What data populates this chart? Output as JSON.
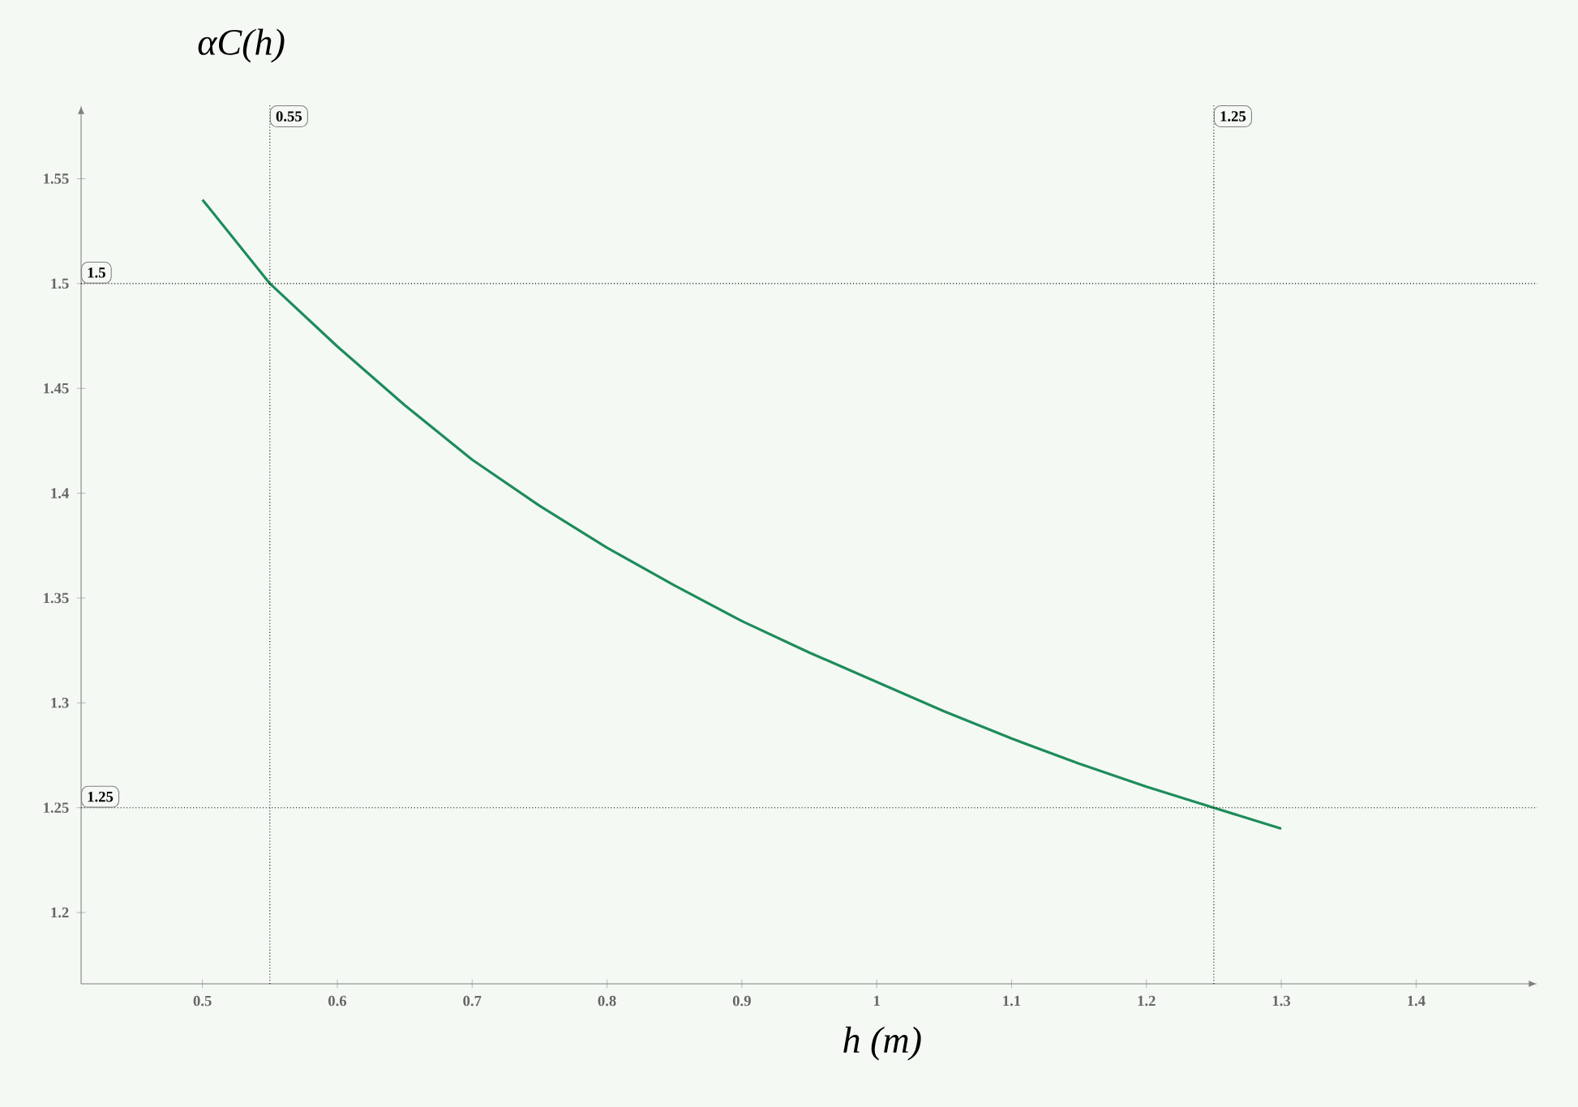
{
  "chart_data": {
    "type": "line",
    "xlabel": "h (m)",
    "ylabel": "αC(h)",
    "x": [
      0.5,
      0.55,
      0.6,
      0.65,
      0.7,
      0.75,
      0.8,
      0.85,
      0.9,
      0.95,
      1.0,
      1.05,
      1.1,
      1.15,
      1.2,
      1.25,
      1.3
    ],
    "values": [
      1.54,
      1.5,
      1.47,
      1.442,
      1.416,
      1.394,
      1.374,
      1.356,
      1.339,
      1.324,
      1.31,
      1.296,
      1.283,
      1.271,
      1.26,
      1.25,
      1.24
    ],
    "color": "#1e8c5a",
    "xlim": [
      0.41,
      1.49
    ],
    "ylim": [
      1.166,
      1.585
    ],
    "xticks": [
      0.5,
      0.6,
      0.7,
      0.8,
      0.9,
      1,
      1.1,
      1.2,
      1.3,
      1.4
    ],
    "yticks": [
      1.2,
      1.25,
      1.3,
      1.35,
      1.4,
      1.45,
      1.5,
      1.55
    ],
    "ref_lines": [
      {
        "axis": "x",
        "value": 0.55,
        "label": "0.55"
      },
      {
        "axis": "x",
        "value": 1.25,
        "label": "1.25"
      },
      {
        "axis": "y",
        "value": 1.5,
        "label": "1.5"
      },
      {
        "axis": "y",
        "value": 1.25,
        "label": "1.25"
      }
    ]
  }
}
